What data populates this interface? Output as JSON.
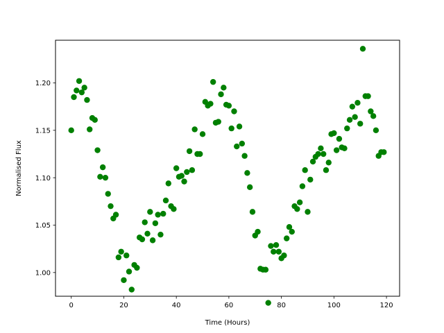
{
  "chart_data": {
    "type": "scatter",
    "title": "",
    "xlabel": "Time (Hours)",
    "ylabel": "Normalised Flux",
    "xlim": [
      -6,
      125
    ],
    "ylim": [
      0.975,
      1.245
    ],
    "xticks": [
      0,
      20,
      40,
      60,
      80,
      100,
      120
    ],
    "yticks": [
      1.0,
      1.05,
      1.1,
      1.15,
      1.2
    ],
    "xtick_labels": [
      "0",
      "20",
      "40",
      "60",
      "80",
      "100",
      "120"
    ],
    "ytick_labels": [
      "1.00",
      "1.05",
      "1.10",
      "1.15",
      "1.20"
    ],
    "grid": false,
    "marker_color": "#008000",
    "x": [
      0,
      1,
      2,
      3,
      4,
      5,
      6,
      7,
      8,
      9,
      10,
      11,
      12,
      13,
      14,
      15,
      16,
      17,
      18,
      19,
      20,
      21,
      22,
      23,
      24,
      25,
      26,
      27,
      28,
      29,
      30,
      31,
      32,
      33,
      34,
      35,
      36,
      37,
      38,
      39,
      40,
      41,
      42,
      43,
      44,
      45,
      46,
      47,
      48,
      49,
      50,
      51,
      52,
      53,
      54,
      55,
      56,
      57,
      58,
      59,
      60,
      61,
      62,
      63,
      64,
      65,
      66,
      67,
      68,
      69,
      70,
      71,
      72,
      73,
      74,
      75,
      76,
      77,
      78,
      79,
      80,
      81,
      82,
      83,
      84,
      85,
      86,
      87,
      88,
      89,
      90,
      91,
      92,
      93,
      94,
      95,
      96,
      97,
      98,
      99,
      100,
      101,
      102,
      103,
      104,
      105,
      106,
      107,
      108,
      109,
      110,
      111,
      112,
      113,
      114,
      115,
      116,
      117,
      118,
      119
    ],
    "y": [
      1.15,
      1.185,
      1.192,
      1.202,
      1.19,
      1.195,
      1.182,
      1.151,
      1.163,
      1.161,
      1.129,
      1.101,
      1.111,
      1.1,
      1.083,
      1.07,
      1.057,
      1.061,
      1.016,
      1.022,
      0.992,
      1.018,
      1.001,
      0.982,
      1.008,
      1.005,
      1.037,
      1.035,
      1.053,
      1.041,
      1.064,
      1.034,
      1.052,
      1.061,
      1.04,
      1.062,
      1.076,
      1.094,
      1.07,
      1.067,
      1.11,
      1.101,
      1.102,
      1.096,
      1.106,
      1.128,
      1.108,
      1.151,
      1.125,
      1.125,
      1.146,
      1.18,
      1.176,
      1.178,
      1.201,
      1.158,
      1.159,
      1.188,
      1.195,
      1.177,
      1.176,
      1.152,
      1.17,
      1.133,
      1.154,
      1.136,
      1.123,
      1.105,
      1.09,
      1.064,
      1.039,
      1.043,
      1.004,
      1.003,
      1.003,
      0.968,
      1.028,
      1.022,
      1.029,
      1.022,
      1.015,
      1.018,
      1.036,
      1.048,
      1.043,
      1.07,
      1.067,
      1.074,
      1.091,
      1.108,
      1.064,
      1.098,
      1.117,
      1.122,
      1.125,
      1.131,
      1.125,
      1.108,
      1.116,
      1.146,
      1.147,
      1.129,
      1.141,
      1.132,
      1.131,
      1.152,
      1.161,
      1.175,
      1.164,
      1.179,
      1.157,
      1.236,
      1.186,
      1.186,
      1.17,
      1.165,
      1.15,
      1.123,
      1.127,
      1.127
    ]
  }
}
